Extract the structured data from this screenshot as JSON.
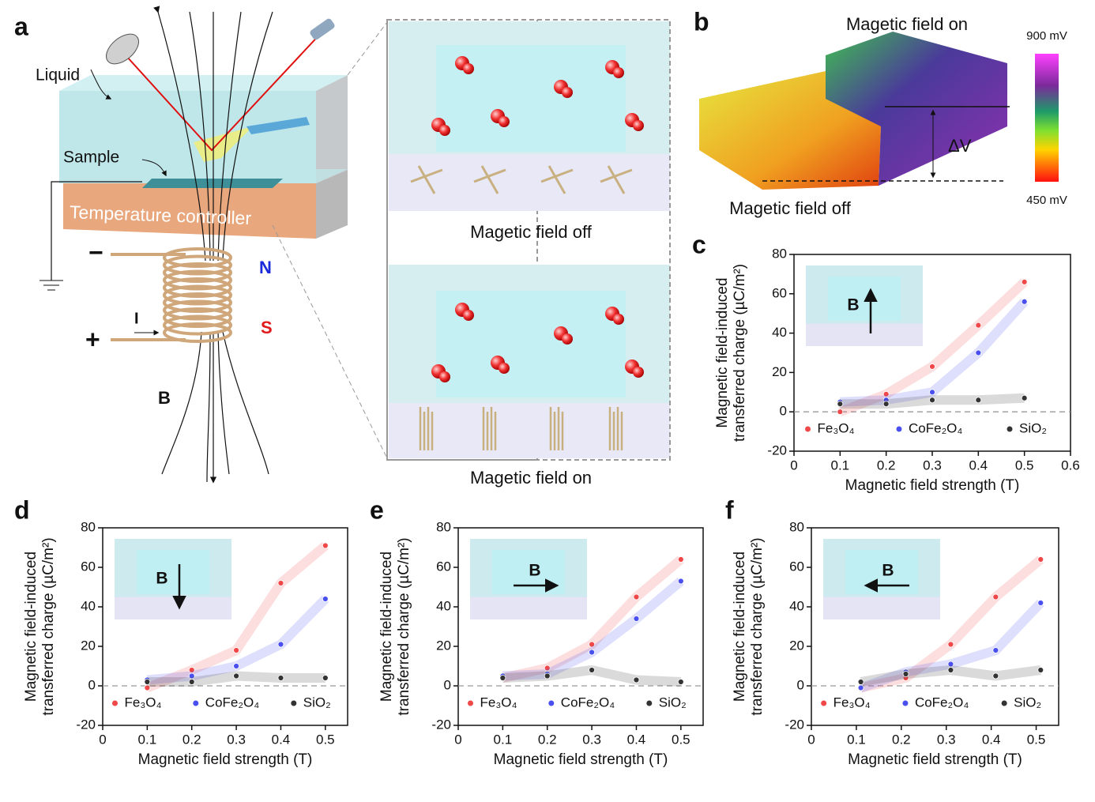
{
  "panel_labels": [
    "a",
    "b",
    "c",
    "d",
    "e",
    "f"
  ],
  "diagram_a": {
    "liquid": "Liquid",
    "sample": "Sample",
    "controller": "Temperature controller",
    "minus": "−",
    "plus": "+",
    "current": "I",
    "north": "N",
    "south": "S",
    "field": "B",
    "off": "Magetic field off",
    "on": "Magetic field on"
  },
  "panel_b": {
    "on": "Magetic field on",
    "off": "Magetic field off",
    "delta": "ΔV",
    "scale_max": "900 mV",
    "scale_min": "450 mV"
  },
  "chart_data": [
    {
      "type": "scatter",
      "xlabel": "Magnetic field strength (T)",
      "ylabel": [
        "Magnetic field-induced",
        "transferred charge (µC/m²)"
      ],
      "xlim": [
        0,
        0.6
      ],
      "xticks": [
        0,
        0.1,
        0.2,
        0.3,
        0.4,
        0.5,
        0.6
      ],
      "ylim": [
        -20,
        80
      ],
      "yticks": [
        -20,
        0,
        20,
        40,
        60,
        80
      ],
      "zero_line": true,
      "inset_label": "B",
      "inset_arrow": "up",
      "series": [
        {
          "name": "Fe₃O₄",
          "color": "#f04848",
          "x": [
            0.1,
            0.2,
            0.3,
            0.4,
            0.5
          ],
          "values": [
            0,
            9,
            23,
            44,
            66
          ]
        },
        {
          "name": "CoFe₂O₄",
          "color": "#4a50f0",
          "x": [
            0.1,
            0.2,
            0.3,
            0.4,
            0.5
          ],
          "values": [
            5,
            6,
            10,
            30,
            56
          ]
        },
        {
          "name": "SiO₂",
          "color": "#333333",
          "x": [
            0.1,
            0.2,
            0.3,
            0.4,
            0.5
          ],
          "values": [
            4,
            4,
            6,
            6,
            7
          ]
        }
      ]
    },
    {
      "type": "scatter",
      "xlabel": "Magnetic field strength (T)",
      "ylabel": [
        "Magnetic field-induced",
        "transferred charge (µC/m²)"
      ],
      "xlim": [
        0,
        0.55
      ],
      "xticks": [
        0,
        0.1,
        0.2,
        0.3,
        0.4,
        0.5
      ],
      "ylim": [
        -20,
        80
      ],
      "yticks": [
        -20,
        0,
        20,
        40,
        60,
        80
      ],
      "zero_line": true,
      "inset_label": "B",
      "inset_arrow": "down",
      "series": [
        {
          "name": "Fe₃O₄",
          "color": "#f04848",
          "x": [
            0.1,
            0.2,
            0.3,
            0.4,
            0.5
          ],
          "values": [
            -1,
            8,
            18,
            52,
            71
          ]
        },
        {
          "name": "CoFe₂O₄",
          "color": "#4a50f0",
          "x": [
            0.1,
            0.2,
            0.3,
            0.4,
            0.5
          ],
          "values": [
            3,
            5,
            10,
            21,
            44
          ]
        },
        {
          "name": "SiO₂",
          "color": "#333333",
          "x": [
            0.1,
            0.2,
            0.3,
            0.4,
            0.5
          ],
          "values": [
            2,
            2,
            5,
            4,
            4
          ]
        }
      ]
    },
    {
      "type": "scatter",
      "xlabel": "Magnetic field strength (T)",
      "ylabel": [
        "Magnetic field-induced",
        "transferred charge (µC/m²)"
      ],
      "xlim": [
        0,
        0.55
      ],
      "xticks": [
        0,
        0.1,
        0.2,
        0.3,
        0.4,
        0.5
      ],
      "ylim": [
        -20,
        80
      ],
      "yticks": [
        -20,
        0,
        20,
        40,
        60,
        80
      ],
      "zero_line": true,
      "inset_label": "B",
      "inset_arrow": "right",
      "series": [
        {
          "name": "Fe₃O₄",
          "color": "#f04848",
          "x": [
            0.1,
            0.2,
            0.3,
            0.4,
            0.5
          ],
          "values": [
            4,
            9,
            21,
            45,
            64
          ]
        },
        {
          "name": "CoFe₂O₄",
          "color": "#4a50f0",
          "x": [
            0.1,
            0.2,
            0.3,
            0.4,
            0.5
          ],
          "values": [
            5,
            6,
            17,
            34,
            53
          ]
        },
        {
          "name": "SiO₂",
          "color": "#333333",
          "x": [
            0.1,
            0.2,
            0.3,
            0.4,
            0.5
          ],
          "values": [
            4,
            5,
            8,
            3,
            2
          ]
        }
      ]
    },
    {
      "type": "scatter",
      "xlabel": "Magnetic field strength (T)",
      "ylabel": [
        "Magnetic field-induced",
        "transferred charge (µC/m²)"
      ],
      "xlim": [
        0,
        0.55
      ],
      "xticks": [
        0,
        0.1,
        0.2,
        0.3,
        0.4,
        0.5
      ],
      "ylim": [
        -20,
        80
      ],
      "yticks": [
        -20,
        0,
        20,
        40,
        60,
        80
      ],
      "zero_line": true,
      "inset_label": "B",
      "inset_arrow": "left",
      "series": [
        {
          "name": "Fe₃O₄",
          "color": "#f04848",
          "x": [
            0.11,
            0.21,
            0.31,
            0.41,
            0.51
          ],
          "values": [
            -1,
            4,
            21,
            45,
            64
          ]
        },
        {
          "name": "CoFe₂O₄",
          "color": "#4a50f0",
          "x": [
            0.11,
            0.21,
            0.31,
            0.41,
            0.51
          ],
          "values": [
            -1,
            7,
            11,
            18,
            42
          ]
        },
        {
          "name": "SiO₂",
          "color": "#333333",
          "x": [
            0.11,
            0.21,
            0.31,
            0.41,
            0.51
          ],
          "values": [
            2,
            6,
            8,
            5,
            8
          ]
        }
      ]
    }
  ]
}
